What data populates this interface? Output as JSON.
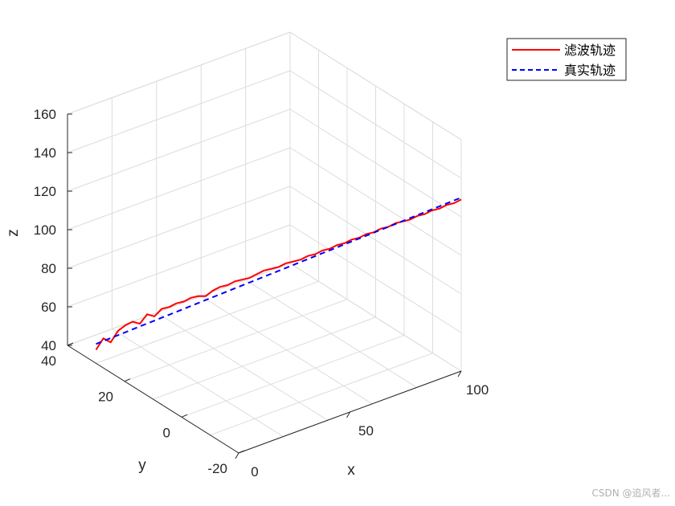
{
  "chart_data": {
    "type": "line",
    "title": "",
    "xlabel": "x",
    "ylabel": "y",
    "zlabel": "z",
    "xlim": [
      0,
      100
    ],
    "ylim": [
      -20,
      40
    ],
    "zlim": [
      40,
      160
    ],
    "x_ticks": [
      "0",
      "50",
      "100"
    ],
    "y_ticks": [
      "-20",
      "0",
      "20",
      "40"
    ],
    "z_ticks": [
      "40",
      "60",
      "80",
      "100",
      "120",
      "140",
      "160"
    ],
    "grid": true,
    "legend_position": "top-right",
    "series": [
      {
        "name": "滤波轨迹",
        "color": "#ff0000",
        "style": "solid",
        "x": [
          0,
          2,
          4,
          6,
          8,
          10,
          12,
          14,
          16,
          18,
          20,
          22,
          24,
          26,
          28,
          30,
          32,
          34,
          36,
          38,
          40,
          42,
          44,
          46,
          48,
          50,
          52,
          54,
          56,
          58,
          60,
          62,
          64,
          66,
          68,
          70,
          72,
          74,
          76,
          78,
          80,
          82,
          84,
          86,
          88,
          90,
          92,
          94,
          96,
          98,
          100
        ],
        "y": [
          30,
          29,
          28,
          27,
          26,
          25,
          24,
          23,
          22,
          21,
          20,
          19,
          18,
          17,
          16,
          15,
          14,
          13,
          12,
          11,
          10,
          9,
          8,
          7,
          6,
          5,
          4,
          3,
          2,
          1,
          0,
          -1,
          -2,
          -3,
          -4,
          -5,
          -6,
          -7,
          -8,
          -9,
          -10,
          -11,
          -12,
          -13,
          -14,
          -15,
          -16,
          -17,
          -18,
          -19,
          -20
        ],
        "z": [
          47,
          53,
          51,
          57,
          60,
          62,
          61,
          66,
          65,
          69,
          70,
          72,
          73,
          75,
          76,
          76,
          79,
          81,
          82,
          84,
          85,
          86,
          88,
          90,
          91,
          92,
          94,
          95,
          96,
          98,
          99,
          101,
          102,
          104,
          105,
          107,
          108,
          110,
          111,
          113,
          114,
          116,
          117,
          118,
          120,
          121,
          123,
          124,
          126,
          127,
          129
        ]
      },
      {
        "name": "真实轨迹",
        "color": "#0000ff",
        "style": "dashed",
        "x": [
          0,
          10,
          20,
          30,
          40,
          50,
          60,
          70,
          80,
          90,
          100
        ],
        "y": [
          30,
          25,
          20,
          15,
          10,
          5,
          0,
          -5,
          -10,
          -15,
          -20
        ],
        "z": [
          50,
          58,
          66,
          74,
          82,
          90,
          98,
          106,
          114,
          122,
          130
        ]
      }
    ]
  },
  "watermark": "CSDN @追风者..."
}
